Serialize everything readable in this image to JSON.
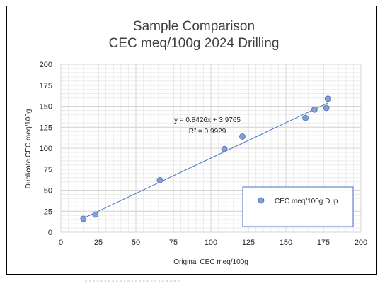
{
  "chart_data": {
    "type": "scatter",
    "title": [
      "Sample Comparison",
      "CEC meq/100g 2024 Drilling"
    ],
    "xlabel": "Original CEC meq/100g",
    "ylabel": "Duplicate CEC meq/100g",
    "xlim": [
      0,
      200
    ],
    "ylim": [
      0,
      200
    ],
    "xticks": [
      0,
      25,
      50,
      75,
      100,
      125,
      150,
      175,
      200
    ],
    "yticks": [
      0,
      25,
      50,
      75,
      100,
      125,
      150,
      175,
      200
    ],
    "grid": "major and minor",
    "legend_position": "lower-right",
    "series": [
      {
        "name": "CEC meq/100g Dup",
        "color": "#7f9fd5",
        "x": [
          15,
          23,
          66,
          109,
          121,
          163,
          169,
          177,
          178
        ],
        "y": [
          16,
          21,
          62,
          99,
          114,
          136,
          146,
          148,
          159
        ]
      }
    ],
    "trendline": {
      "type": "linear",
      "slope": 0.8426,
      "intercept": 3.9765,
      "x_range": [
        15,
        178
      ],
      "color": "#4472c4",
      "equation_label": "y = 0.8426x + 3.9765",
      "r2_label": "R² = 0.9929"
    }
  }
}
